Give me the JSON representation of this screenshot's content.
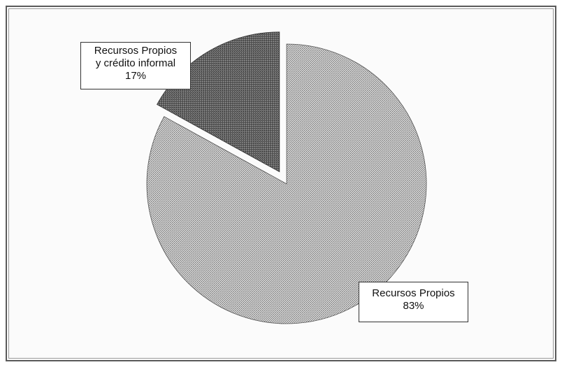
{
  "chart_data": {
    "type": "pie",
    "title": "",
    "slices": [
      {
        "name": "Recursos Propios",
        "value": 83,
        "label_percent": "83%",
        "color": "#b4b4b4",
        "exploded": false
      },
      {
        "name": "Recursos Propios y crédito informal",
        "name_line1": "Recursos Propios",
        "name_line2": "y crédito informal",
        "value": 17,
        "label_percent": "17%",
        "color": "#5d5d5d",
        "exploded": true
      }
    ],
    "legend": "none"
  }
}
